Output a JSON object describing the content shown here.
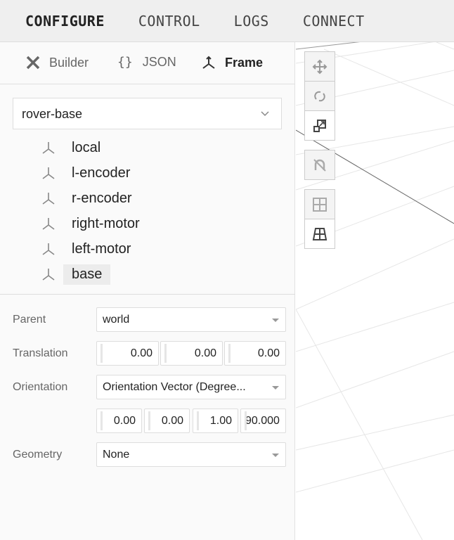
{
  "top_tabs": [
    "CONFIGURE",
    "CONTROL",
    "LOGS",
    "CONNECT"
  ],
  "sub_tabs": [
    {
      "label": "Builder",
      "icon": "tools-icon"
    },
    {
      "label": "JSON",
      "icon": "braces-icon"
    },
    {
      "label": "Frame",
      "icon": "frame-axes-icon",
      "active": true
    }
  ],
  "component_select": {
    "value": "rover-base"
  },
  "frames": [
    "local",
    "l-encoder",
    "r-encoder",
    "right-motor",
    "left-motor",
    "base"
  ],
  "selected_frame": "base",
  "form": {
    "parent": {
      "label": "Parent",
      "value": "world"
    },
    "translation": {
      "label": "Translation",
      "values": [
        "0.00",
        "0.00",
        "0.00"
      ]
    },
    "orientation": {
      "label": "Orientation",
      "type": "Orientation Vector (Degree...",
      "values": [
        "0.00",
        "0.00",
        "1.00",
        "90.000"
      ]
    },
    "geometry": {
      "label": "Geometry",
      "value": "None"
    }
  },
  "viewport_tools": [
    "translate-icon",
    "rotate-icon",
    "scale-icon",
    "snap-off-icon",
    "top-view-grid-icon",
    "perspective-grid-icon"
  ]
}
